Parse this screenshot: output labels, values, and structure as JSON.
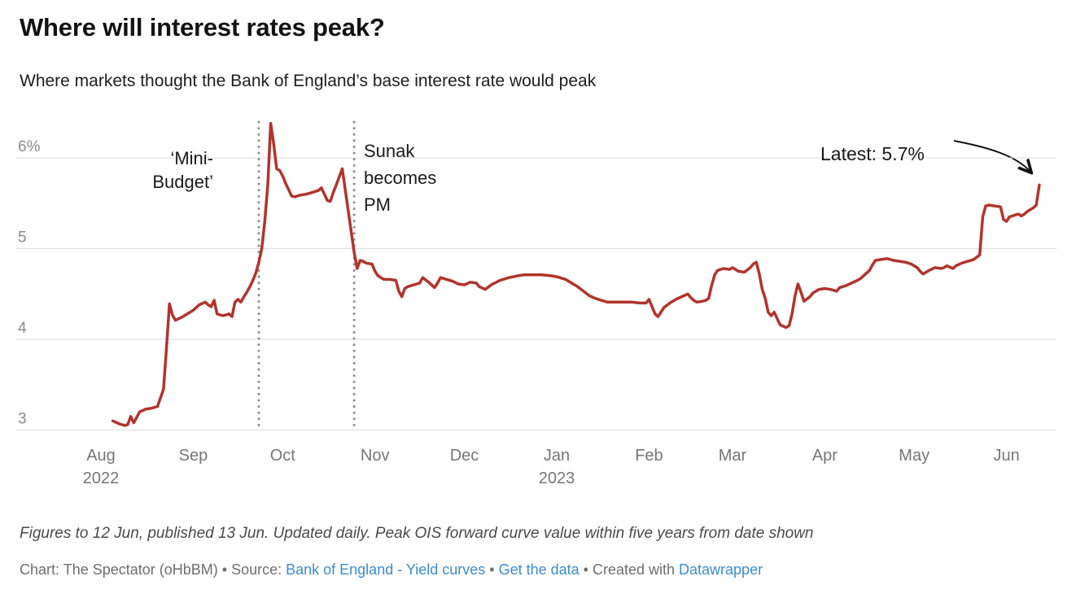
{
  "header": {
    "title": "Where will interest rates peak?",
    "subtitle": "Where markets thought the Bank of England’s base interest rate would peak"
  },
  "chart_data": {
    "type": "line",
    "title": "Where will interest rates peak?",
    "subtitle": "Where markets thought the Bank of England’s base interest rate would peak",
    "xlabel": "",
    "ylabel": "",
    "unit": "%",
    "ylim": [
      3,
      6.5
    ],
    "xlim": [
      "2022-08-01",
      "2023-06-17"
    ],
    "grid": "horizontal",
    "legend": "none",
    "y_ticks": [
      {
        "value": 3,
        "label": "3"
      },
      {
        "value": 4,
        "label": "4"
      },
      {
        "value": 5,
        "label": "5"
      },
      {
        "value": 6,
        "label": "6%"
      }
    ],
    "x_ticks": [
      {
        "date": "2022-08-01",
        "label": "Aug",
        "sublabel": "2022"
      },
      {
        "date": "2022-09-01",
        "label": "Sep"
      },
      {
        "date": "2022-10-01",
        "label": "Oct"
      },
      {
        "date": "2022-11-01",
        "label": "Nov"
      },
      {
        "date": "2022-12-01",
        "label": "Dec"
      },
      {
        "date": "2023-01-01",
        "label": "Jan",
        "sublabel": "2023"
      },
      {
        "date": "2023-02-01",
        "label": "Feb"
      },
      {
        "date": "2023-03-01",
        "label": "Mar"
      },
      {
        "date": "2023-04-01",
        "label": "Apr"
      },
      {
        "date": "2023-05-01",
        "label": "May"
      },
      {
        "date": "2023-06-01",
        "label": "Jun"
      }
    ],
    "events": [
      {
        "date": "2022-09-23",
        "label": "‘Mini-\nBudget’",
        "align": "right"
      },
      {
        "date": "2022-10-25",
        "label": "Sunak\nbecomes\nPM",
        "align": "left"
      }
    ],
    "latest": {
      "label": "Latest: 5.7%",
      "date": "2023-06-12",
      "value": 5.7
    },
    "series": [
      {
        "name": "Peak OIS forward curve value",
        "color": "#b2342c",
        "points": [
          [
            "2022-08-05",
            3.1
          ],
          [
            "2022-08-07",
            3.07
          ],
          [
            "2022-08-09",
            3.05
          ],
          [
            "2022-08-10",
            3.06
          ],
          [
            "2022-08-11",
            3.15
          ],
          [
            "2022-08-12",
            3.08
          ],
          [
            "2022-08-14",
            3.2
          ],
          [
            "2022-08-16",
            3.23
          ],
          [
            "2022-08-18",
            3.24
          ],
          [
            "2022-08-20",
            3.26
          ],
          [
            "2022-08-22",
            3.45
          ],
          [
            "2022-08-23",
            3.9
          ],
          [
            "2022-08-24",
            4.39
          ],
          [
            "2022-08-25",
            4.27
          ],
          [
            "2022-08-26",
            4.21
          ],
          [
            "2022-08-28",
            4.24
          ],
          [
            "2022-08-30",
            4.28
          ],
          [
            "2022-09-01",
            4.32
          ],
          [
            "2022-09-03",
            4.38
          ],
          [
            "2022-09-05",
            4.41
          ],
          [
            "2022-09-06",
            4.38
          ],
          [
            "2022-09-07",
            4.36
          ],
          [
            "2022-09-08",
            4.43
          ],
          [
            "2022-09-09",
            4.28
          ],
          [
            "2022-09-11",
            4.26
          ],
          [
            "2022-09-13",
            4.28
          ],
          [
            "2022-09-14",
            4.25
          ],
          [
            "2022-09-15",
            4.41
          ],
          [
            "2022-09-16",
            4.44
          ],
          [
            "2022-09-17",
            4.41
          ],
          [
            "2022-09-18",
            4.47
          ],
          [
            "2022-09-19",
            4.52
          ],
          [
            "2022-09-20",
            4.58
          ],
          [
            "2022-09-21",
            4.65
          ],
          [
            "2022-09-22",
            4.73
          ],
          [
            "2022-09-23",
            4.85
          ],
          [
            "2022-09-24",
            5.0
          ],
          [
            "2022-09-25",
            5.3
          ],
          [
            "2022-09-26",
            5.7
          ],
          [
            "2022-09-27",
            6.38
          ],
          [
            "2022-09-28",
            6.15
          ],
          [
            "2022-09-29",
            5.88
          ],
          [
            "2022-09-30",
            5.86
          ],
          [
            "2022-10-01",
            5.8
          ],
          [
            "2022-10-02",
            5.72
          ],
          [
            "2022-10-03",
            5.65
          ],
          [
            "2022-10-04",
            5.58
          ],
          [
            "2022-10-05",
            5.57
          ],
          [
            "2022-10-06",
            5.58
          ],
          [
            "2022-10-07",
            5.59
          ],
          [
            "2022-10-09",
            5.6
          ],
          [
            "2022-10-11",
            5.62
          ],
          [
            "2022-10-13",
            5.64
          ],
          [
            "2022-10-14",
            5.67
          ],
          [
            "2022-10-15",
            5.6
          ],
          [
            "2022-10-16",
            5.53
          ],
          [
            "2022-10-17",
            5.52
          ],
          [
            "2022-10-18",
            5.62
          ],
          [
            "2022-10-19",
            5.7
          ],
          [
            "2022-10-20",
            5.79
          ],
          [
            "2022-10-21",
            5.88
          ],
          [
            "2022-10-25",
            4.96
          ],
          [
            "2022-10-26",
            4.78
          ],
          [
            "2022-10-27",
            4.87
          ],
          [
            "2022-10-28",
            4.86
          ],
          [
            "2022-10-29",
            4.84
          ],
          [
            "2022-10-31",
            4.83
          ],
          [
            "2022-11-01",
            4.75
          ],
          [
            "2022-11-02",
            4.7
          ],
          [
            "2022-11-03",
            4.68
          ],
          [
            "2022-11-04",
            4.66
          ],
          [
            "2022-11-06",
            4.66
          ],
          [
            "2022-11-08",
            4.65
          ],
          [
            "2022-11-09",
            4.53
          ],
          [
            "2022-11-10",
            4.47
          ],
          [
            "2022-11-11",
            4.56
          ],
          [
            "2022-11-12",
            4.58
          ],
          [
            "2022-11-14",
            4.6
          ],
          [
            "2022-11-16",
            4.62
          ],
          [
            "2022-11-17",
            4.68
          ],
          [
            "2022-11-19",
            4.63
          ],
          [
            "2022-11-21",
            4.57
          ],
          [
            "2022-11-22",
            4.62
          ],
          [
            "2022-11-23",
            4.68
          ],
          [
            "2022-11-25",
            4.66
          ],
          [
            "2022-11-27",
            4.64
          ],
          [
            "2022-11-29",
            4.61
          ],
          [
            "2022-12-01",
            4.6
          ],
          [
            "2022-12-03",
            4.63
          ],
          [
            "2022-12-05",
            4.62
          ],
          [
            "2022-12-06",
            4.58
          ],
          [
            "2022-12-08",
            4.55
          ],
          [
            "2022-12-10",
            4.6
          ],
          [
            "2022-12-13",
            4.65
          ],
          [
            "2022-12-16",
            4.68
          ],
          [
            "2022-12-19",
            4.7
          ],
          [
            "2022-12-21",
            4.71
          ],
          [
            "2022-12-24",
            4.71
          ],
          [
            "2022-12-27",
            4.71
          ],
          [
            "2022-12-30",
            4.7
          ],
          [
            "2023-01-01",
            4.69
          ],
          [
            "2023-01-04",
            4.66
          ],
          [
            "2023-01-06",
            4.62
          ],
          [
            "2023-01-08",
            4.58
          ],
          [
            "2023-01-10",
            4.53
          ],
          [
            "2023-01-12",
            4.48
          ],
          [
            "2023-01-14",
            4.45
          ],
          [
            "2023-01-16",
            4.43
          ],
          [
            "2023-01-18",
            4.41
          ],
          [
            "2023-01-20",
            4.41
          ],
          [
            "2023-01-23",
            4.41
          ],
          [
            "2023-01-26",
            4.41
          ],
          [
            "2023-01-29",
            4.4
          ],
          [
            "2023-01-31",
            4.4
          ],
          [
            "2023-02-01",
            4.44
          ],
          [
            "2023-02-02",
            4.36
          ],
          [
            "2023-02-03",
            4.28
          ],
          [
            "2023-02-04",
            4.25
          ],
          [
            "2023-02-05",
            4.3
          ],
          [
            "2023-02-06",
            4.35
          ],
          [
            "2023-02-08",
            4.4
          ],
          [
            "2023-02-10",
            4.44
          ],
          [
            "2023-02-12",
            4.47
          ],
          [
            "2023-02-14",
            4.5
          ],
          [
            "2023-02-15",
            4.46
          ],
          [
            "2023-02-16",
            4.43
          ],
          [
            "2023-02-17",
            4.41
          ],
          [
            "2023-02-19",
            4.42
          ],
          [
            "2023-02-20",
            4.43
          ],
          [
            "2023-02-21",
            4.45
          ],
          [
            "2023-02-22",
            4.59
          ],
          [
            "2023-02-23",
            4.71
          ],
          [
            "2023-02-24",
            4.76
          ],
          [
            "2023-02-26",
            4.78
          ],
          [
            "2023-02-28",
            4.77
          ],
          [
            "2023-03-01",
            4.79
          ],
          [
            "2023-03-02",
            4.77
          ],
          [
            "2023-03-03",
            4.75
          ],
          [
            "2023-03-05",
            4.74
          ],
          [
            "2023-03-07",
            4.79
          ],
          [
            "2023-03-08",
            4.83
          ],
          [
            "2023-03-09",
            4.85
          ],
          [
            "2023-03-10",
            4.72
          ],
          [
            "2023-03-11",
            4.55
          ],
          [
            "2023-03-12",
            4.45
          ],
          [
            "2023-03-13",
            4.3
          ],
          [
            "2023-03-14",
            4.26
          ],
          [
            "2023-03-15",
            4.3
          ],
          [
            "2023-03-16",
            4.23
          ],
          [
            "2023-03-17",
            4.16
          ],
          [
            "2023-03-19",
            4.13
          ],
          [
            "2023-03-20",
            4.15
          ],
          [
            "2023-03-21",
            4.28
          ],
          [
            "2023-03-22",
            4.48
          ],
          [
            "2023-03-23",
            4.61
          ],
          [
            "2023-03-24",
            4.52
          ],
          [
            "2023-03-25",
            4.42
          ],
          [
            "2023-03-27",
            4.47
          ],
          [
            "2023-03-28",
            4.51
          ],
          [
            "2023-03-30",
            4.55
          ],
          [
            "2023-04-01",
            4.56
          ],
          [
            "2023-04-03",
            4.55
          ],
          [
            "2023-04-04",
            4.54
          ],
          [
            "2023-04-05",
            4.53
          ],
          [
            "2023-04-06",
            4.57
          ],
          [
            "2023-04-08",
            4.59
          ],
          [
            "2023-04-10",
            4.62
          ],
          [
            "2023-04-12",
            4.65
          ],
          [
            "2023-04-13",
            4.67
          ],
          [
            "2023-04-14",
            4.7
          ],
          [
            "2023-04-16",
            4.76
          ],
          [
            "2023-04-17",
            4.82
          ],
          [
            "2023-04-18",
            4.87
          ],
          [
            "2023-04-20",
            4.88
          ],
          [
            "2023-04-22",
            4.89
          ],
          [
            "2023-04-24",
            4.87
          ],
          [
            "2023-04-26",
            4.86
          ],
          [
            "2023-04-28",
            4.85
          ],
          [
            "2023-04-30",
            4.83
          ],
          [
            "2023-05-02",
            4.79
          ],
          [
            "2023-05-03",
            4.75
          ],
          [
            "2023-05-04",
            4.72
          ],
          [
            "2023-05-06",
            4.76
          ],
          [
            "2023-05-08",
            4.79
          ],
          [
            "2023-05-10",
            4.78
          ],
          [
            "2023-05-11",
            4.79
          ],
          [
            "2023-05-12",
            4.81
          ],
          [
            "2023-05-14",
            4.78
          ],
          [
            "2023-05-15",
            4.81
          ],
          [
            "2023-05-17",
            4.84
          ],
          [
            "2023-05-19",
            4.86
          ],
          [
            "2023-05-21",
            4.88
          ],
          [
            "2023-05-23",
            4.93
          ],
          [
            "2023-05-24",
            5.35
          ],
          [
            "2023-05-25",
            5.47
          ],
          [
            "2023-05-26",
            5.48
          ],
          [
            "2023-05-28",
            5.47
          ],
          [
            "2023-05-30",
            5.46
          ],
          [
            "2023-05-31",
            5.32
          ],
          [
            "2023-06-01",
            5.3
          ],
          [
            "2023-06-02",
            5.35
          ],
          [
            "2023-06-04",
            5.37
          ],
          [
            "2023-06-05",
            5.38
          ],
          [
            "2023-06-06",
            5.36
          ],
          [
            "2023-06-07",
            5.38
          ],
          [
            "2023-06-08",
            5.41
          ],
          [
            "2023-06-09",
            5.43
          ],
          [
            "2023-06-10",
            5.45
          ],
          [
            "2023-06-11",
            5.48
          ],
          [
            "2023-06-12",
            5.7
          ]
        ]
      }
    ]
  },
  "footer": {
    "notes": "Figures to 12 Jun, published 13 Jun. Updated daily. Peak OIS forward curve value within five years from date shown",
    "byline": {
      "prefix": "Chart: The Spectator (oHbBM) • Source: ",
      "source_label": "Bank of England - Yield curves",
      "sep1": " • ",
      "get_data_label": "Get the data",
      "sep2": " • Created with ",
      "datawrapper_label": "Datawrapper"
    }
  }
}
